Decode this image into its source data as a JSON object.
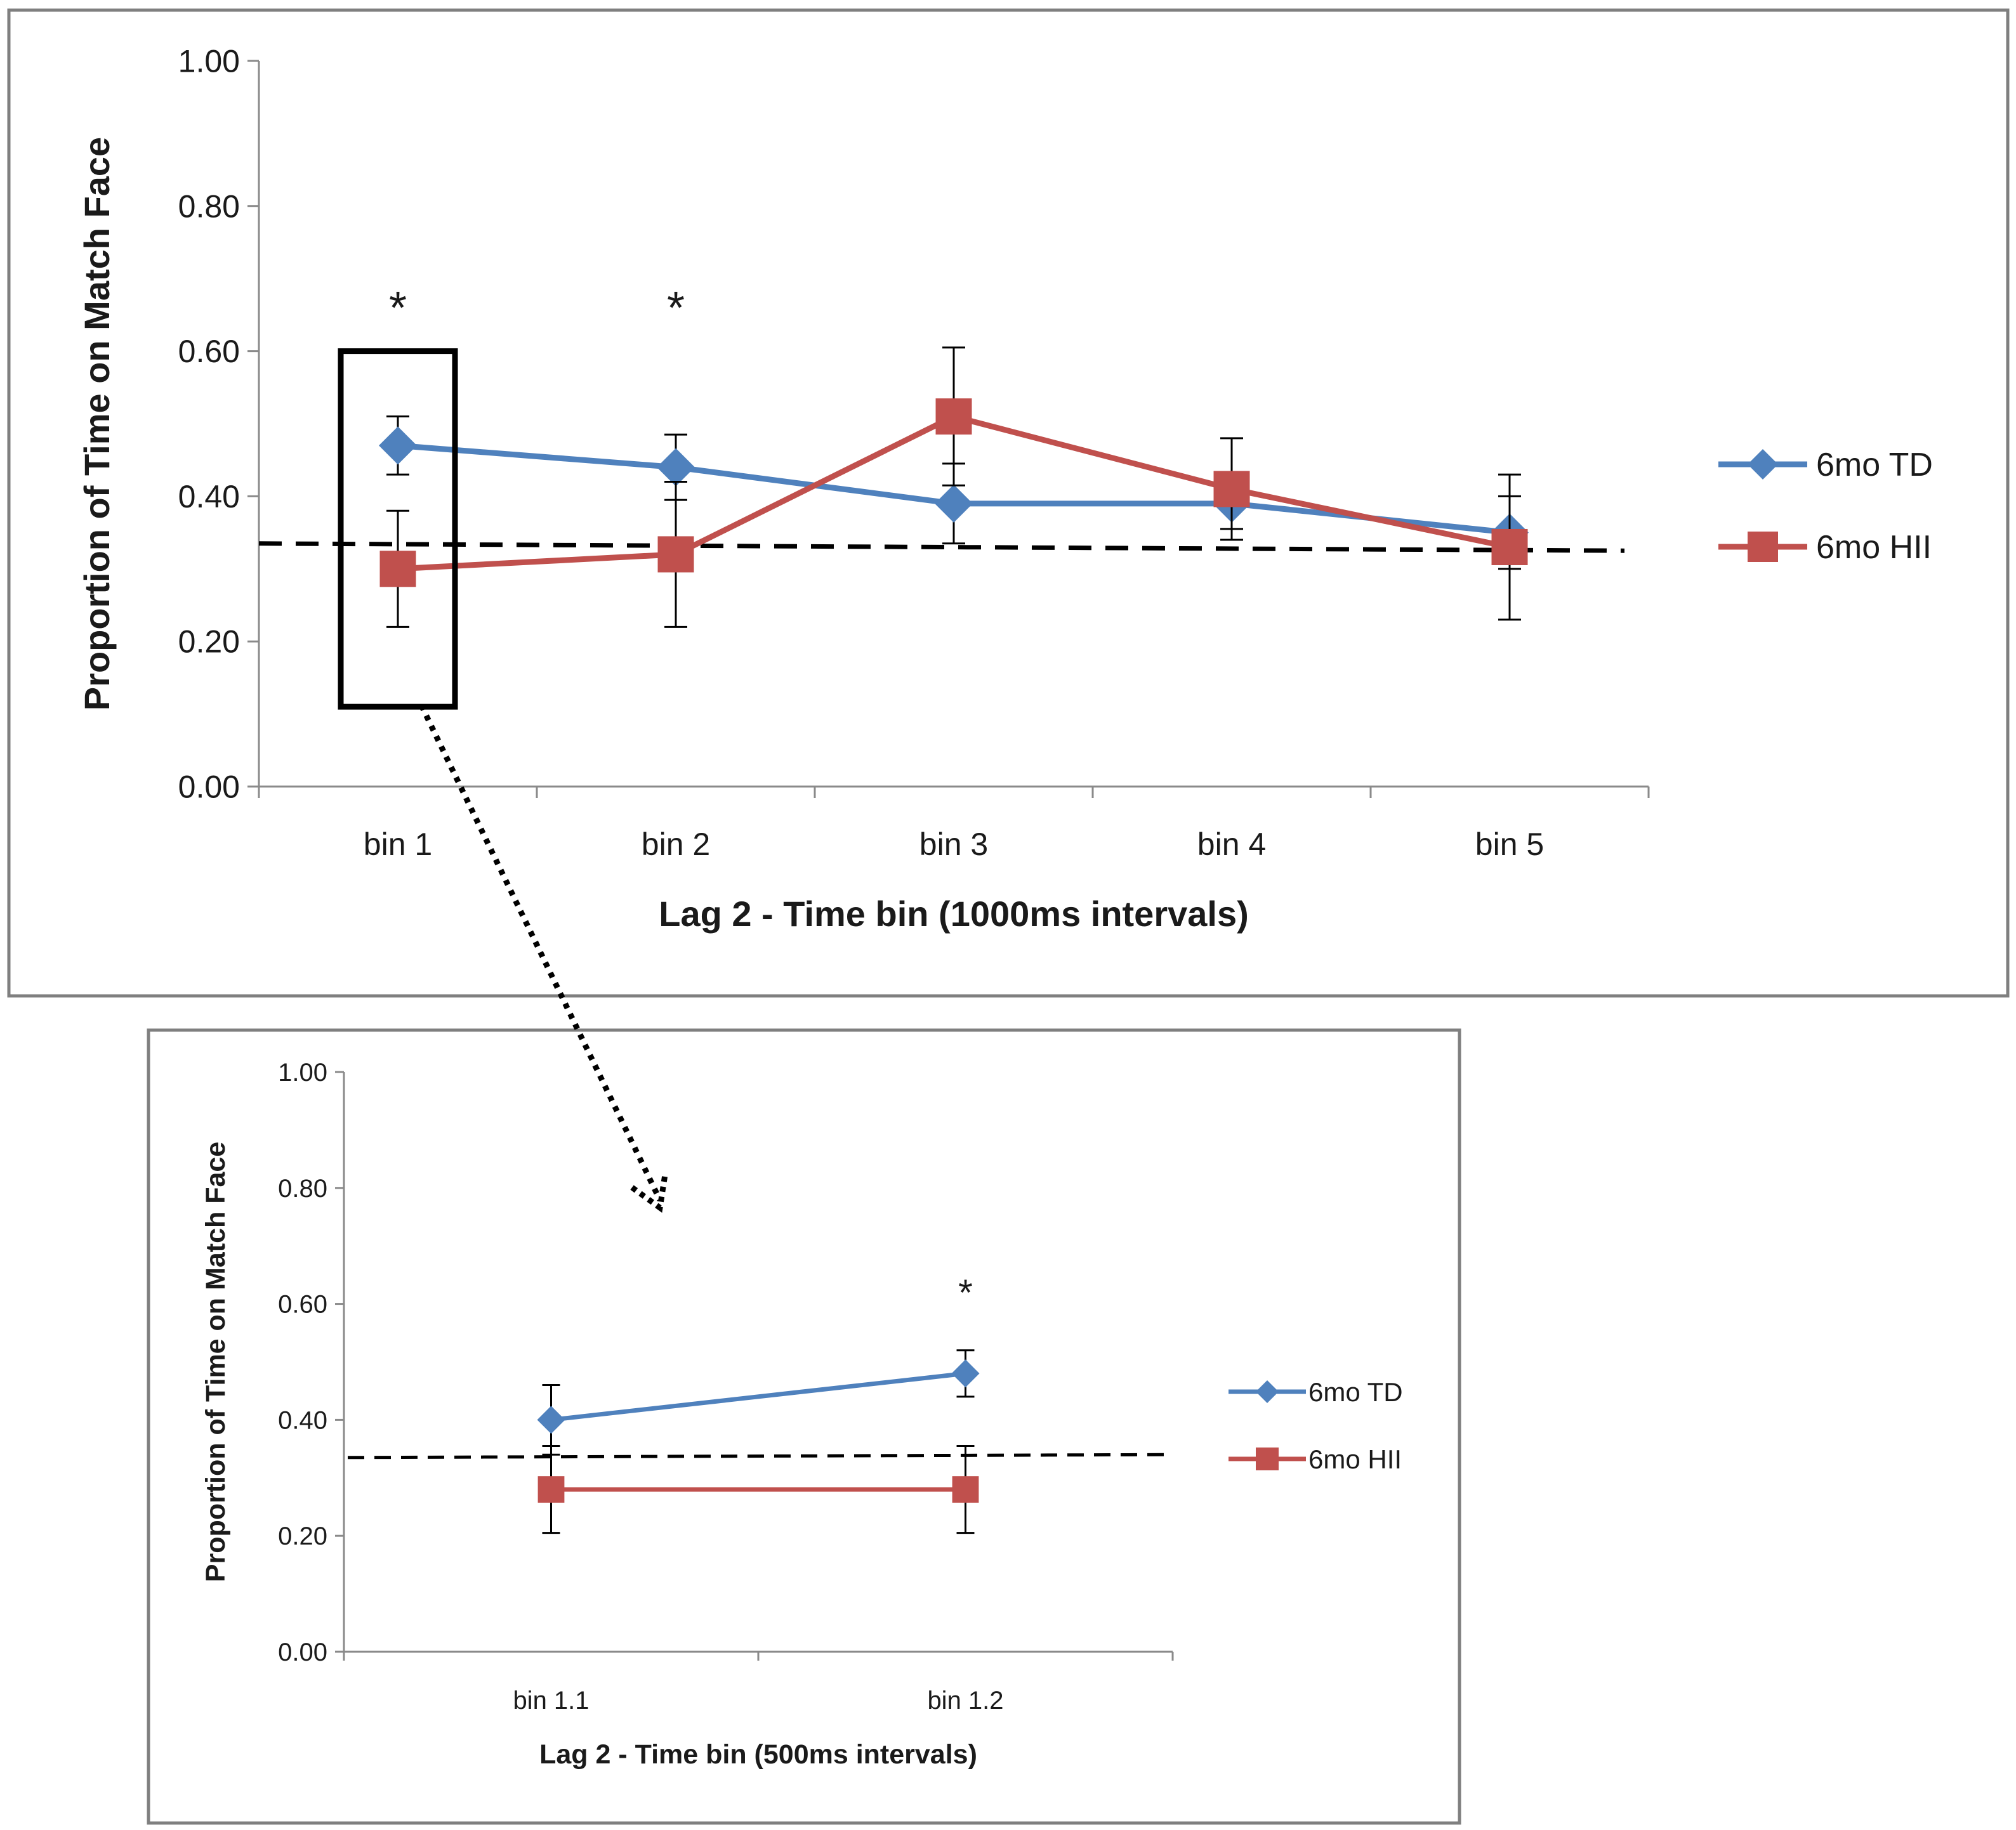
{
  "chart_data": [
    {
      "type": "line",
      "categories": [
        "bin 1",
        "bin 2",
        "bin 3",
        "bin 4",
        "bin 5"
      ],
      "series": [
        {
          "name": "6mo TD",
          "color": "#4F81BD",
          "marker": "diamond",
          "values": [
            0.47,
            0.44,
            0.39,
            0.39,
            0.35
          ],
          "errors": [
            0.04,
            0.045,
            0.055,
            0.035,
            0.05
          ]
        },
        {
          "name": "6mo HII",
          "color": "#C0504D",
          "marker": "square",
          "values": [
            0.3,
            0.32,
            0.51,
            0.41,
            0.33
          ],
          "errors": [
            0.08,
            0.1,
            0.095,
            0.07,
            0.1
          ]
        }
      ],
      "ylim": [
        0,
        1
      ],
      "ytick_labels": [
        "0.00",
        "0.20",
        "0.40",
        "0.60",
        "0.80",
        "1.00"
      ],
      "ylabel": "Proportion of Time on Match Face",
      "xlabel": "Lag 2  - Time bin (1000ms intervals)",
      "significance_markers": [
        "*",
        "*"
      ],
      "significant_categories": [
        "bin 1",
        "bin 2"
      ],
      "chance_line": [
        0.335,
        0.325
      ],
      "highlighted_category": "bin 1",
      "highlight_range": [
        0.11,
        0.6
      ],
      "legend_position": "right"
    },
    {
      "type": "line",
      "categories": [
        "bin 1.1",
        "bin 1.2"
      ],
      "series": [
        {
          "name": "6mo TD",
          "color": "#4F81BD",
          "marker": "diamond",
          "values": [
            0.4,
            0.48
          ],
          "errors": [
            0.06,
            0.04
          ]
        },
        {
          "name": "6mo HII",
          "color": "#C0504D",
          "marker": "square",
          "values": [
            0.28,
            0.28
          ],
          "errors": [
            0.075,
            0.075
          ]
        }
      ],
      "ylim": [
        0,
        1
      ],
      "ytick_labels": [
        "0.00",
        "0.20",
        "0.40",
        "0.60",
        "0.80",
        "1.00"
      ],
      "ylabel": "Proportion of Time on Match Face",
      "xlabel": "Lag 2  - Time bin (500ms intervals)",
      "significance_markers": [
        "*"
      ],
      "significant_categories": [
        "bin 1.2"
      ],
      "chance_line": [
        0.335,
        0.34
      ],
      "legend_position": "right"
    }
  ]
}
